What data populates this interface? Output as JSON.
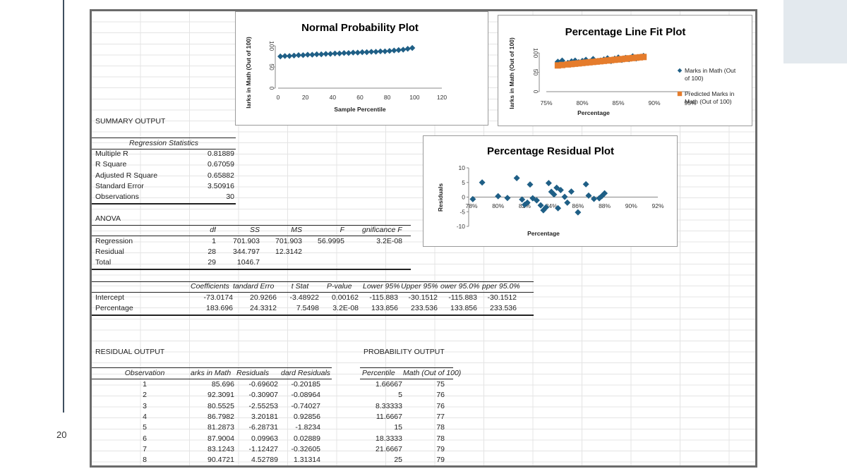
{
  "slide": {
    "page_number": "20"
  },
  "summary": {
    "title": "SUMMARY OUTPUT",
    "regression_statistics_header": "Regression Statistics",
    "stats": [
      {
        "label": "Multiple R",
        "value": "0.81889"
      },
      {
        "label": "R Square",
        "value": "0.67059"
      },
      {
        "label": "Adjusted R Square",
        "value": "0.65882"
      },
      {
        "label": "Standard Error",
        "value": "3.50916"
      },
      {
        "label": "Observations",
        "value": "30"
      }
    ]
  },
  "anova": {
    "title": "ANOVA",
    "headers": [
      "df",
      "SS",
      "MS",
      "F",
      "gnificance F"
    ],
    "rows": [
      {
        "label": "Regression",
        "cells": [
          "1",
          "701.903",
          "701.903",
          "56.9995",
          "3.2E-08"
        ]
      },
      {
        "label": "Residual",
        "cells": [
          "28",
          "344.797",
          "12.3142",
          "",
          ""
        ]
      },
      {
        "label": "Total",
        "cells": [
          "29",
          "1046.7",
          "",
          "",
          ""
        ]
      }
    ]
  },
  "coefficients": {
    "headers": [
      "Coefficients",
      "tandard Erro",
      "t Stat",
      "P-value",
      "Lower 95%",
      "Upper 95%",
      "ower 95.0%",
      "pper 95.0%"
    ],
    "rows": [
      {
        "label": "Intercept",
        "cells": [
          "-73.0174",
          "20.9266",
          "-3.48922",
          "0.00162",
          "-115.883",
          "-30.1512",
          "-115.883",
          "-30.1512"
        ]
      },
      {
        "label": "Percentage",
        "cells": [
          "183.696",
          "24.3312",
          "7.5498",
          "3.2E-08",
          "133.856",
          "233.536",
          "133.856",
          "233.536"
        ]
      }
    ]
  },
  "residual_output": {
    "title": "RESIDUAL OUTPUT",
    "headers": [
      "Observation",
      "arks in Math",
      "Residuals",
      "dard Residuals"
    ],
    "rows": [
      [
        "1",
        "85.696",
        "-0.69602",
        "-0.20185"
      ],
      [
        "2",
        "92.3091",
        "-0.30907",
        "-0.08964"
      ],
      [
        "3",
        "80.5525",
        "-2.55253",
        "-0.74027"
      ],
      [
        "4",
        "86.7982",
        "3.20181",
        "0.92856"
      ],
      [
        "5",
        "81.2873",
        "-6.28731",
        "-1.8234"
      ],
      [
        "6",
        "87.9004",
        "0.09963",
        "0.02889"
      ],
      [
        "7",
        "83.1243",
        "-1.12427",
        "-0.32605"
      ],
      [
        "8",
        "90.4721",
        "4.52789",
        "1.31314"
      ]
    ]
  },
  "probability_output": {
    "title": "PROBABILITY OUTPUT",
    "headers": [
      "Percentile",
      "Math (Out of 100)"
    ],
    "rows": [
      [
        "1.66667",
        "75"
      ],
      [
        "5",
        "76"
      ],
      [
        "8.33333",
        "76"
      ],
      [
        "11.6667",
        "77"
      ],
      [
        "15",
        "78"
      ],
      [
        "18.3333",
        "78"
      ],
      [
        "21.6667",
        "79"
      ],
      [
        "25",
        "79"
      ]
    ]
  },
  "colors": {
    "marker_blue": "#1f5f86",
    "marker_orange": "#e57c2c"
  },
  "chart_data": [
    {
      "type": "scatter",
      "title": "Normal Probability Plot",
      "xlabel": "Sample Percentile",
      "ylabel": "larks in Math (Out of 100)",
      "xlim": [
        0,
        120
      ],
      "ylim": [
        0,
        100
      ],
      "xticks": [
        "0",
        "20",
        "40",
        "60",
        "80",
        "100",
        "120"
      ],
      "yticks": [
        "0",
        "50",
        "100"
      ],
      "series": [
        {
          "x": [
            1.67,
            5,
            8.33,
            11.67,
            15,
            18.33,
            21.67,
            25,
            28.33,
            31.67,
            35,
            38.33,
            41.67,
            45,
            48.33,
            51.67,
            55,
            58.33,
            61.67,
            65,
            68.33,
            71.67,
            75,
            78.33,
            81.67,
            85,
            88.33,
            91.67,
            95,
            98.33
          ],
          "y": [
            75,
            76,
            76,
            77,
            78,
            78,
            79,
            79,
            80,
            80,
            81,
            81,
            82,
            82,
            83,
            83,
            84,
            84,
            85,
            85,
            86,
            86,
            87,
            87,
            88,
            89,
            90,
            91,
            93,
            95
          ]
        }
      ],
      "grid": false
    },
    {
      "type": "scatter",
      "title": "Percentage Line Fit  Plot",
      "xlabel": "Percentage",
      "ylabel": "larks in Math (Out of 100)",
      "xlim": [
        0.75,
        0.95
      ],
      "ylim": [
        0,
        100
      ],
      "xticks": [
        "75%",
        "80%",
        "85%",
        "90%",
        "95%"
      ],
      "yticks": [
        "0",
        "50",
        "100"
      ],
      "series": [
        {
          "name": "Marks in Math (Out of 100)",
          "x": [
            0.766,
            0.772,
            0.78,
            0.785,
            0.79,
            0.795,
            0.8,
            0.805,
            0.81,
            0.815,
            0.82,
            0.825,
            0.83,
            0.835,
            0.84,
            0.845,
            0.85,
            0.855,
            0.86,
            0.865,
            0.87,
            0.875,
            0.88,
            0.885
          ],
          "y": [
            77,
            80,
            74,
            78,
            80,
            76,
            79,
            82,
            77,
            84,
            78,
            80,
            83,
            86,
            79,
            85,
            88,
            82,
            87,
            84,
            91,
            86,
            89,
            92
          ]
        },
        {
          "name": "Predicted Marks in Math (Out of 100)",
          "x": [
            0.766,
            0.772,
            0.78,
            0.785,
            0.79,
            0.795,
            0.8,
            0.805,
            0.81,
            0.815,
            0.82,
            0.825,
            0.83,
            0.835,
            0.84,
            0.845,
            0.85,
            0.855,
            0.86,
            0.865,
            0.87,
            0.875,
            0.88,
            0.885
          ],
          "y": [
            67.7,
            68.8,
            70.3,
            71.2,
            72.1,
            73.0,
            74.0,
            74.9,
            75.8,
            76.7,
            77.6,
            78.5,
            79.4,
            80.4,
            81.3,
            82.2,
            83.1,
            84.0,
            85.0,
            85.9,
            86.8,
            87.7,
            88.6,
            89.5
          ]
        }
      ],
      "legend": "right",
      "grid": false
    },
    {
      "type": "scatter",
      "title": "Percentage Residual Plot",
      "xlabel": "Percentage",
      "ylabel": "Residuals",
      "xlim": [
        0.78,
        0.92
      ],
      "ylim": [
        -10,
        10
      ],
      "xticks": [
        "78%",
        "80%",
        "82%",
        "84%",
        "86%",
        "88%",
        "90%",
        "92%"
      ],
      "yticks": [
        "-10",
        "-5",
        "0",
        "5",
        "10"
      ],
      "series": [
        {
          "x": [
            0.781,
            0.788,
            0.8,
            0.807,
            0.814,
            0.818,
            0.82,
            0.822,
            0.824,
            0.826,
            0.829,
            0.832,
            0.834,
            0.836,
            0.838,
            0.84,
            0.842,
            0.844,
            0.845,
            0.847,
            0.85,
            0.852,
            0.855,
            0.86,
            0.866,
            0.868,
            0.872,
            0.876,
            0.878,
            0.88
          ],
          "y": [
            -0.7,
            5.0,
            0.3,
            -0.3,
            6.5,
            -0.8,
            -2.6,
            -1.9,
            4.3,
            -0.4,
            -1.1,
            -2.8,
            -4.5,
            -3.5,
            4.8,
            1.8,
            0.9,
            3.2,
            -3.8,
            2.4,
            0.1,
            -1.9,
            1.9,
            -5.2,
            4.4,
            0.5,
            -0.6,
            -0.4,
            0.4,
            1.3
          ]
        }
      ],
      "grid": false
    }
  ]
}
